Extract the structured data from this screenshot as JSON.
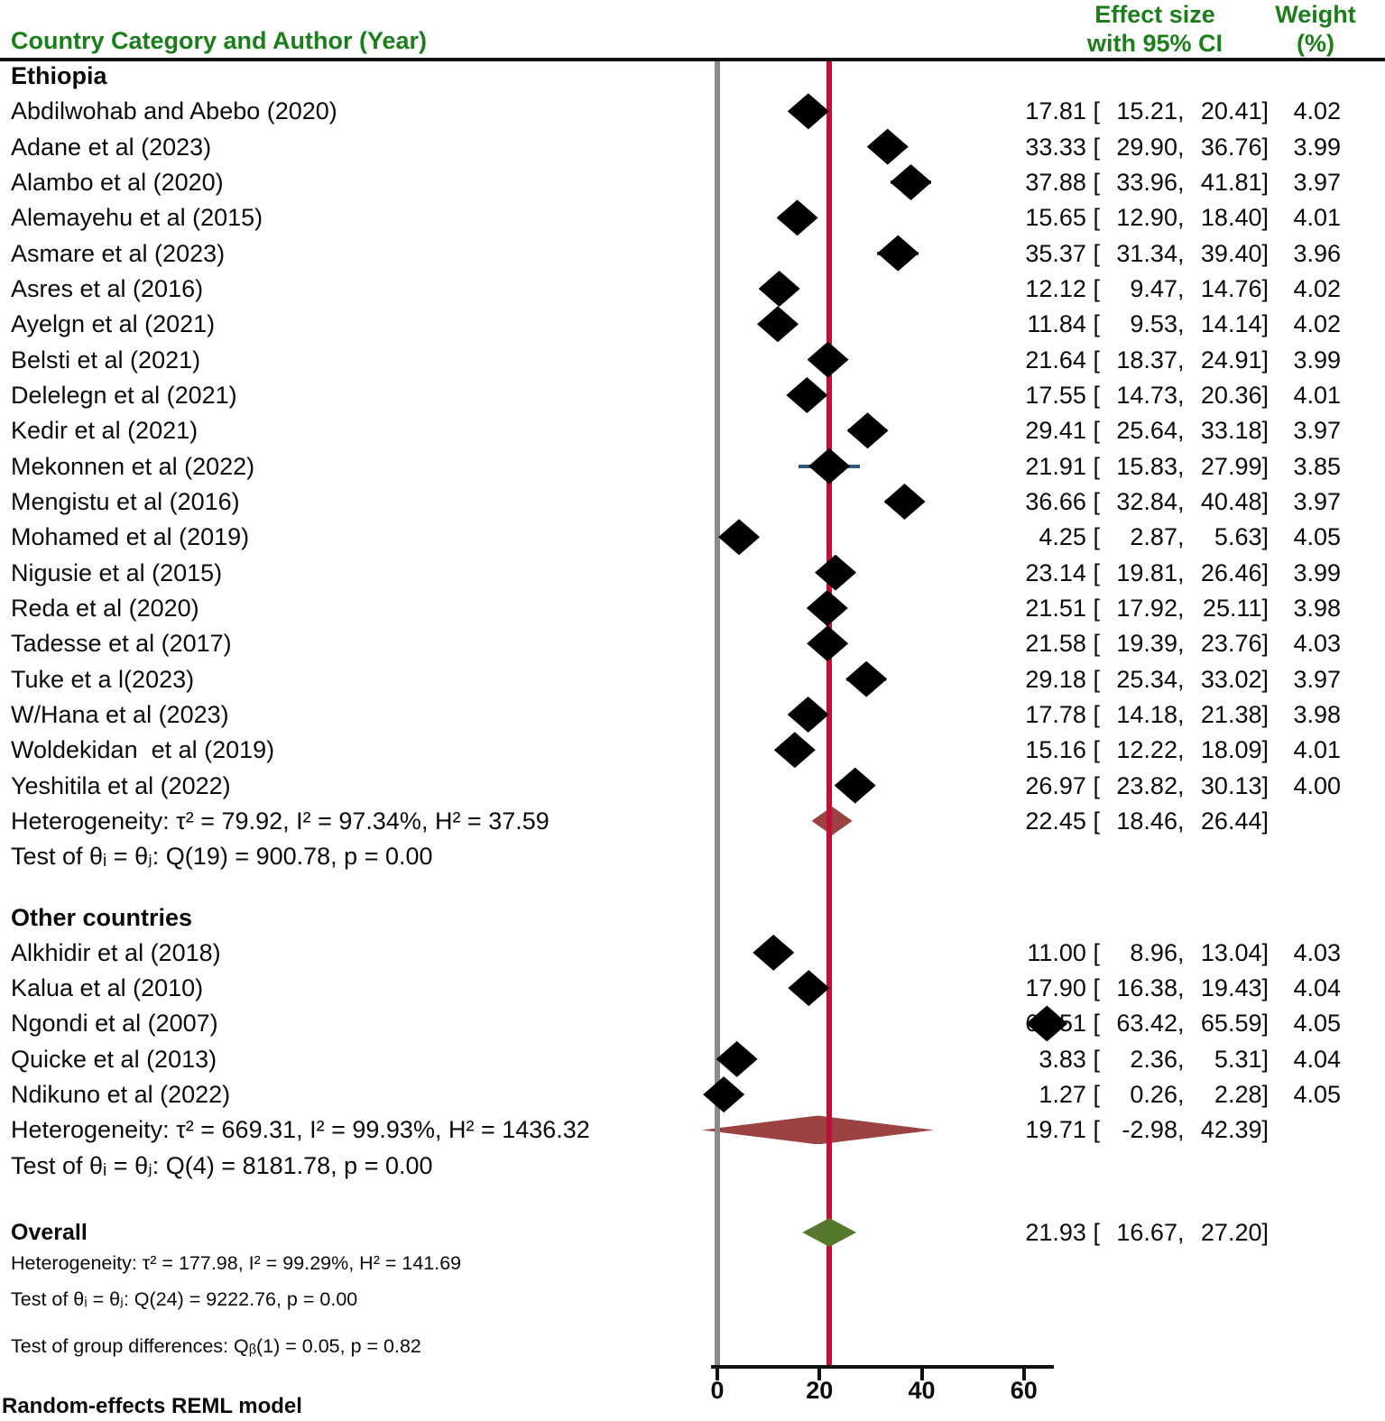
{
  "header": {
    "col_study": "Country Category and Author (Year)",
    "col_effect_line1": "Effect size",
    "col_effect_line2": "with 95% CI",
    "col_weight_line1": "Weight",
    "col_weight_line2": "(%)"
  },
  "footer": {
    "model_note": "Random-effects REML model"
  },
  "colors": {
    "header_green": "#1b7e1b",
    "reference_line_red": "#c00f35",
    "null_line_gray": "#8a8a8a",
    "subgroup_diamond_maroon": "#9c4243",
    "overall_diamond_olive": "#55792c",
    "ci_whisker_navy": "#2e5a80",
    "marker_black": "#000000"
  },
  "chart_data": {
    "type": "forest",
    "x_ticks": [
      0,
      20,
      40,
      60
    ],
    "x_axis_range_px_note": "values mapped linearly, 0 and 60 labeled ticks visible",
    "null_line_value": 0,
    "reference_line_value": 21.93,
    "groups": [
      {
        "label": "Ethiopia",
        "studies": [
          {
            "label": "Abdilwohab and Abebo (2020)",
            "est": 17.81,
            "lo": 15.21,
            "hi": 20.41,
            "weight": 4.02
          },
          {
            "label": "Adane et al (2023)",
            "est": 33.33,
            "lo": 29.9,
            "hi": 36.76,
            "weight": 3.99
          },
          {
            "label": "Alambo et al (2020)",
            "est": 37.88,
            "lo": 33.96,
            "hi": 41.81,
            "weight": 3.97
          },
          {
            "label": "Alemayehu et al (2015)",
            "est": 15.65,
            "lo": 12.9,
            "hi": 18.4,
            "weight": 4.01
          },
          {
            "label": "Asmare et al (2023)",
            "est": 35.37,
            "lo": 31.34,
            "hi": 39.4,
            "weight": 3.96
          },
          {
            "label": "Asres et al (2016)",
            "est": 12.12,
            "lo": 9.47,
            "hi": 14.76,
            "weight": 4.02
          },
          {
            "label": "Ayelgn et al (2021)",
            "est": 11.84,
            "lo": 9.53,
            "hi": 14.14,
            "weight": 4.02
          },
          {
            "label": "Belsti et al (2021)",
            "est": 21.64,
            "lo": 18.37,
            "hi": 24.91,
            "weight": 3.99
          },
          {
            "label": "Delelegn et al (2021)",
            "est": 17.55,
            "lo": 14.73,
            "hi": 20.36,
            "weight": 4.01
          },
          {
            "label": "Kedir et al (2021)",
            "est": 29.41,
            "lo": 25.64,
            "hi": 33.18,
            "weight": 3.97
          },
          {
            "label": "Mekonnen et al (2022)",
            "est": 21.91,
            "lo": 15.83,
            "hi": 27.99,
            "weight": 3.85
          },
          {
            "label": "Mengistu et al (2016)",
            "est": 36.66,
            "lo": 32.84,
            "hi": 40.48,
            "weight": 3.97
          },
          {
            "label": "Mohamed et al (2019)",
            "est": 4.25,
            "lo": 2.87,
            "hi": 5.63,
            "weight": 4.05
          },
          {
            "label": "Nigusie et al (2015)",
            "est": 23.14,
            "lo": 19.81,
            "hi": 26.46,
            "weight": 3.99
          },
          {
            "label": "Reda et al (2020)",
            "est": 21.51,
            "lo": 17.92,
            "hi": 25.11,
            "weight": 3.98
          },
          {
            "label": "Tadesse et al (2017)",
            "est": 21.58,
            "lo": 19.39,
            "hi": 23.76,
            "weight": 4.03
          },
          {
            "label": "Tuke et a l(2023)",
            "est": 29.18,
            "lo": 25.34,
            "hi": 33.02,
            "weight": 3.97
          },
          {
            "label": "W/Hana et al (2023)",
            "est": 17.78,
            "lo": 14.18,
            "hi": 21.38,
            "weight": 3.98
          },
          {
            "label": "Woldekidan  et al (2019)",
            "est": 15.16,
            "lo": 12.22,
            "hi": 18.09,
            "weight": 4.01
          },
          {
            "label": "Yeshitila et al (2022)",
            "est": 26.97,
            "lo": 23.82,
            "hi": 30.13,
            "weight": 4.0
          }
        ],
        "summary": {
          "est": 22.45,
          "lo": 18.46,
          "hi": 26.44
        },
        "heterogeneity": "Heterogeneity: τ² = 79.92, I² = 97.34%, H² = 37.59",
        "test": "Test of θᵢ = θⱼ: Q(19) = 900.78, p = 0.00"
      },
      {
        "label": "Other countries",
        "studies": [
          {
            "label": "Alkhidir et al (2018)",
            "est": 11.0,
            "lo": 8.96,
            "hi": 13.04,
            "weight": 4.03
          },
          {
            "label": "Kalua et al (2010)",
            "est": 17.9,
            "lo": 16.38,
            "hi": 19.43,
            "weight": 4.04
          },
          {
            "label": "Ngondi et al (2007)",
            "est": 64.51,
            "lo": 63.42,
            "hi": 65.59,
            "weight": 4.05
          },
          {
            "label": "Quicke et al (2013)",
            "est": 3.83,
            "lo": 2.36,
            "hi": 5.31,
            "weight": 4.04
          },
          {
            "label": "Ndikuno et al (2022)",
            "est": 1.27,
            "lo": 0.26,
            "hi": 2.28,
            "weight": 4.05
          }
        ],
        "summary": {
          "est": 19.71,
          "lo": -2.98,
          "hi": 42.39
        },
        "heterogeneity": "Heterogeneity: τ² = 669.31, I² = 99.93%, H² = 1436.32",
        "test": "Test of θᵢ = θⱼ: Q(4) = 8181.78, p = 0.00"
      }
    ],
    "overall": {
      "label": "Overall",
      "summary": {
        "est": 21.93,
        "lo": 16.67,
        "hi": 27.2
      },
      "heterogeneity": "Heterogeneity: τ² = 177.98, I² = 99.29%, H² = 141.69",
      "test": "Test of θᵢ = θⱼ: Q(24) = 9222.76, p = 0.00",
      "group_diff": "Test of group differences: Qᵦ(1) = 0.05, p = 0.82"
    }
  }
}
